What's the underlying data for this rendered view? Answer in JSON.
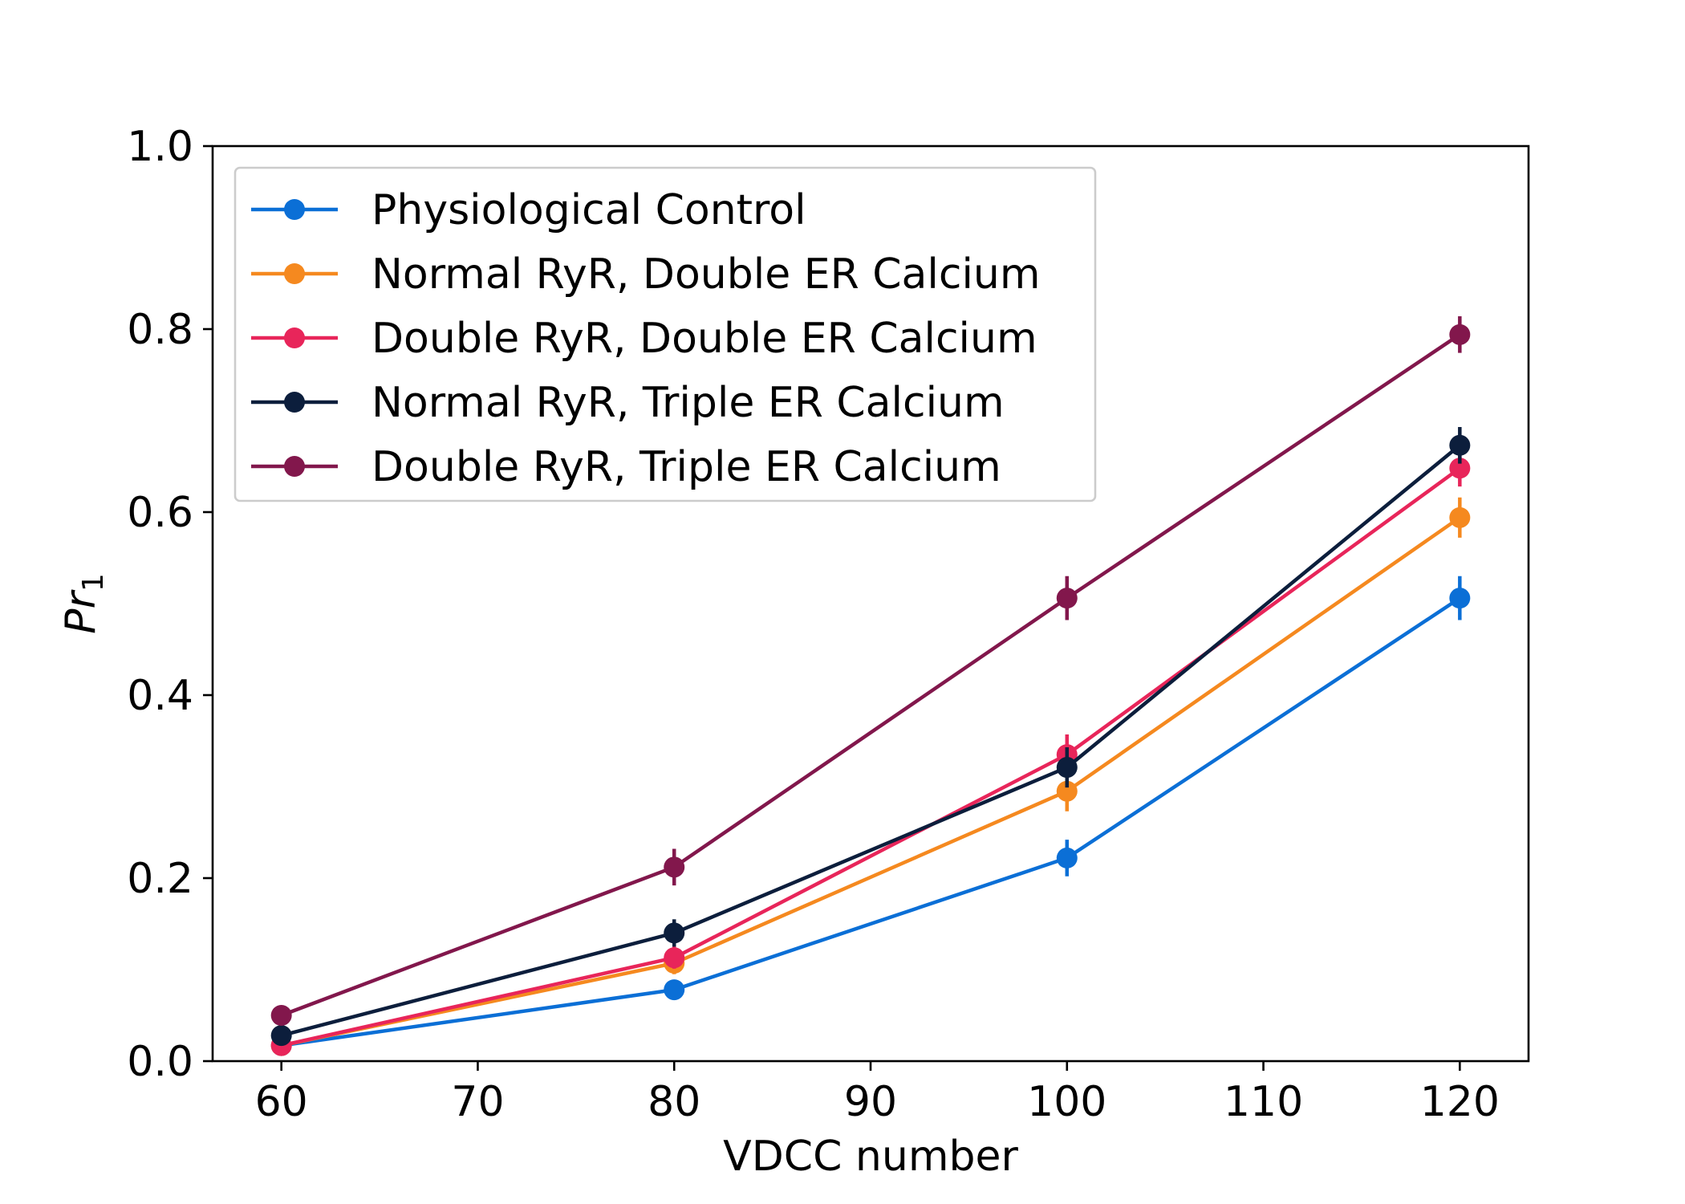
{
  "chart_data": {
    "type": "line",
    "title": "",
    "xlabel": "VDCC number",
    "ylabel_main": "Pr",
    "ylabel_sub": "1",
    "xlim": [
      56.5,
      123.5
    ],
    "ylim": [
      0.0,
      1.0
    ],
    "x_ticks": [
      60,
      70,
      80,
      90,
      100,
      110,
      120
    ],
    "y_ticks": [
      0.0,
      0.2,
      0.4,
      0.6,
      0.8,
      1.0
    ],
    "x_tick_labels": [
      "60",
      "70",
      "80",
      "90",
      "100",
      "110",
      "120"
    ],
    "y_tick_labels": [
      "0.0",
      "0.2",
      "0.4",
      "0.6",
      "0.8",
      "1.0"
    ],
    "grid": false,
    "legend_position": "top-left",
    "x": [
      60,
      80,
      100,
      120
    ],
    "series": [
      {
        "name": "Physiological Control",
        "color": "#0b6fd6",
        "values": [
          0.017,
          0.078,
          0.222,
          0.506
        ],
        "errors": [
          0.006,
          0.01,
          0.02,
          0.024
        ]
      },
      {
        "name": "Normal RyR, Double ER Calcium",
        "color": "#f5891f",
        "values": [
          0.017,
          0.107,
          0.295,
          0.594
        ],
        "errors": [
          0.006,
          0.012,
          0.022,
          0.022
        ]
      },
      {
        "name": "Double RyR, Double ER Calcium",
        "color": "#e8255a",
        "values": [
          0.017,
          0.113,
          0.335,
          0.648
        ],
        "errors": [
          0.006,
          0.012,
          0.022,
          0.02
        ]
      },
      {
        "name": "Normal RyR, Triple ER Calcium",
        "color": "#0c1e3c",
        "values": [
          0.028,
          0.14,
          0.321,
          0.673
        ],
        "errors": [
          0.008,
          0.015,
          0.022,
          0.02
        ]
      },
      {
        "name": "Double RyR, Triple ER Calcium",
        "color": "#82174c",
        "values": [
          0.05,
          0.212,
          0.506,
          0.794
        ],
        "errors": [
          0.008,
          0.02,
          0.024,
          0.02
        ]
      }
    ]
  }
}
